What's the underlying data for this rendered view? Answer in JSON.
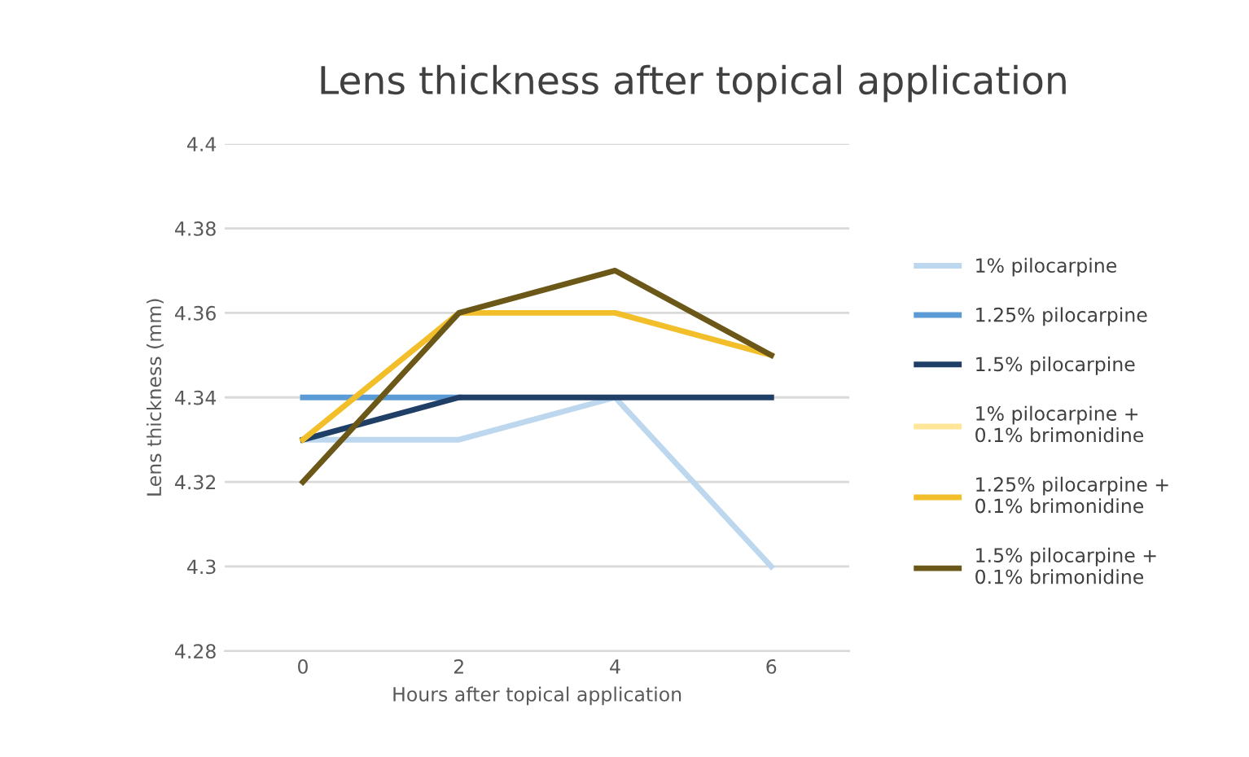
{
  "chart_data": {
    "type": "line",
    "title": "Lens thickness after topical application",
    "xlabel": "Hours after topical application",
    "ylabel": "Lens thickness (mm)",
    "categories": [
      "0",
      "2",
      "4",
      "6"
    ],
    "series": [
      {
        "name": "1% pilocarpine",
        "color": "#bdd7ee",
        "values": [
          4.33,
          4.33,
          4.34,
          4.3
        ]
      },
      {
        "name": "1.25% pilocarpine",
        "color": "#5b9bd5",
        "values": [
          4.34,
          4.34,
          null,
          null
        ]
      },
      {
        "name": "1.5% pilocarpine",
        "color": "#1f3f66",
        "values": [
          4.33,
          4.34,
          4.34,
          4.34
        ]
      },
      {
        "name": "1% pilocarpine +\n0.1% brimonidine",
        "color": "#ffe699",
        "values": [
          null,
          null,
          null,
          null
        ]
      },
      {
        "name": "1.25% pilocarpine +\n0.1% brimonidine",
        "color": "#f2be2a",
        "values": [
          4.33,
          4.36,
          4.36,
          4.35
        ]
      },
      {
        "name": "1.5% pilocarpine +\n0.1% brimonidine",
        "color": "#6b5717",
        "values": [
          4.32,
          4.36,
          4.37,
          4.35
        ]
      }
    ],
    "ylim": [
      4.28,
      4.4
    ],
    "yticks": [
      4.28,
      {
        "value": 4.3,
        "label": "4.3"
      },
      4.32,
      4.34,
      4.36,
      4.38,
      {
        "value": 4.4,
        "label": "4.4"
      }
    ],
    "grid": "y",
    "legend": "right",
    "marker": "none",
    "line_style": "solid"
  }
}
